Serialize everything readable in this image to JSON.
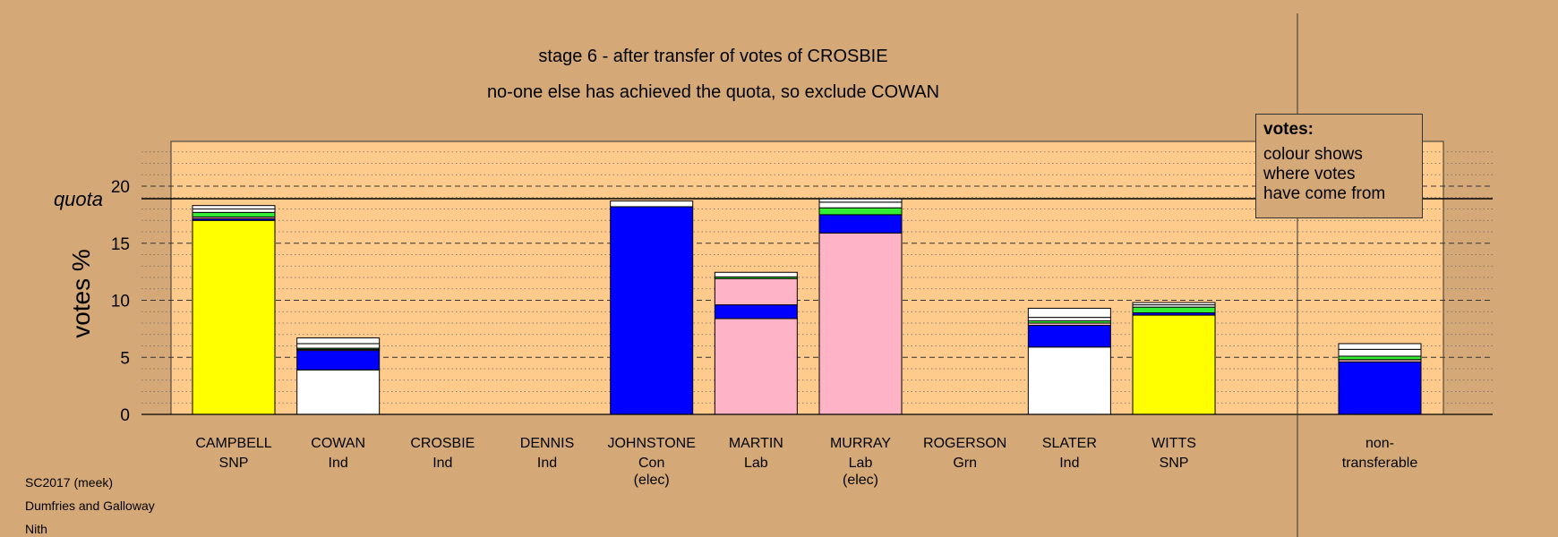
{
  "header": {
    "title": "stage 6 - after transfer of votes of CROSBIE",
    "subtitle": "no-one else has achieved the quota, so exclude COWAN"
  },
  "legend": {
    "title": "votes:",
    "lines": [
      "colour shows",
      "where votes",
      "have come from"
    ]
  },
  "footer": {
    "lines": [
      "SC2017 (meek)",
      "Dumfries and Galloway",
      "Nith"
    ]
  },
  "colors": {
    "background": "#d4a977",
    "plot_area": "#fecb8c",
    "SNP": "#ffff00",
    "Ind": "#ffffff",
    "Con": "#0000ff",
    "Lab": "#ffb3c6",
    "Grn": "#33ee33"
  },
  "chart_data": {
    "type": "bar",
    "stacked": true,
    "ylabel": "votes %",
    "ylim": [
      0,
      23.5
    ],
    "yticks": [
      0,
      5,
      10,
      15,
      20
    ],
    "quota": 18.9,
    "quota_label": "quota",
    "grid": true,
    "candidates": [
      {
        "name": "CAMPBELL",
        "party": "SNP",
        "elec": "",
        "segments": [
          {
            "source": "SNP",
            "value": 17.0
          },
          {
            "source": "Con",
            "value": 0.15
          },
          {
            "source": "Lab",
            "value": 0.15
          },
          {
            "source": "Grn",
            "value": 0.4
          },
          {
            "source": "Ind",
            "value": 0.3
          },
          {
            "source": "Ind",
            "value": 0.3
          }
        ]
      },
      {
        "name": "COWAN",
        "party": "Ind",
        "elec": "",
        "segments": [
          {
            "source": "Ind",
            "value": 3.9
          },
          {
            "source": "Con",
            "value": 1.7
          },
          {
            "source": "Lab",
            "value": 0.1
          },
          {
            "source": "Grn",
            "value": 0.1
          },
          {
            "source": "Ind",
            "value": 0.4
          },
          {
            "source": "Ind",
            "value": 0.5
          }
        ]
      },
      {
        "name": "CROSBIE",
        "party": "Ind",
        "elec": "",
        "segments": []
      },
      {
        "name": "DENNIS",
        "party": "Ind",
        "elec": "",
        "segments": []
      },
      {
        "name": "JOHNSTONE",
        "party": "Con",
        "elec": "(elec)",
        "segments": [
          {
            "source": "Con",
            "value": 18.2
          },
          {
            "source": "Ind",
            "value": 0.5
          }
        ]
      },
      {
        "name": "MARTIN",
        "party": "Lab",
        "elec": "",
        "segments": [
          {
            "source": "Lab",
            "value": 8.4
          },
          {
            "source": "Con",
            "value": 1.2
          },
          {
            "source": "Lab",
            "value": 2.3
          },
          {
            "source": "Grn",
            "value": 0.15
          },
          {
            "source": "Ind",
            "value": 0.4
          }
        ]
      },
      {
        "name": "MURRAY",
        "party": "Lab",
        "elec": "(elec)",
        "segments": [
          {
            "source": "Lab",
            "value": 15.9
          },
          {
            "source": "Con",
            "value": 1.6
          },
          {
            "source": "Grn",
            "value": 0.6
          },
          {
            "source": "Ind",
            "value": 0.5
          },
          {
            "source": "Ind",
            "value": 0.3
          }
        ]
      },
      {
        "name": "ROGERSON",
        "party": "Grn",
        "elec": "",
        "segments": []
      },
      {
        "name": "SLATER",
        "party": "Ind",
        "elec": "",
        "segments": [
          {
            "source": "Ind",
            "value": 5.9
          },
          {
            "source": "Con",
            "value": 1.9
          },
          {
            "source": "Lab",
            "value": 0.2
          },
          {
            "source": "Grn",
            "value": 0.2
          },
          {
            "source": "Ind",
            "value": 0.3
          },
          {
            "source": "Ind",
            "value": 0.8
          }
        ]
      },
      {
        "name": "WITTS",
        "party": "SNP",
        "elec": "",
        "segments": [
          {
            "source": "SNP",
            "value": 8.7
          },
          {
            "source": "Con",
            "value": 0.2
          },
          {
            "source": "Grn",
            "value": 0.5
          },
          {
            "source": "Ind",
            "value": 0.2
          },
          {
            "source": "Ind",
            "value": 0.2
          }
        ]
      }
    ],
    "nontransferable": {
      "label_lines": [
        "non-",
        "transferable"
      ],
      "segments": [
        {
          "source": "Con",
          "value": 4.6
        },
        {
          "source": "Lab",
          "value": 0.2
        },
        {
          "source": "Grn",
          "value": 0.3
        },
        {
          "source": "Ind",
          "value": 0.6
        },
        {
          "source": "Ind",
          "value": 0.5
        }
      ]
    }
  }
}
